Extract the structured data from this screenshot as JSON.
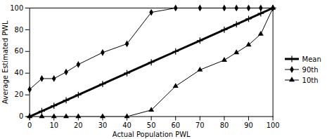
{
  "chart_data": {
    "type": "line",
    "x": [
      0,
      5,
      10,
      15,
      20,
      30,
      40,
      50,
      60,
      70,
      80,
      85,
      90,
      95,
      100
    ],
    "series": [
      {
        "name": "Mean",
        "color": "#000000",
        "marker": "plus",
        "values": [
          0,
          5,
          10,
          15,
          20,
          30,
          40,
          50,
          60,
          70,
          80,
          85,
          90,
          95,
          100
        ]
      },
      {
        "name": "90th",
        "color": "#000000",
        "marker": "diamond",
        "values": [
          25,
          35,
          35,
          41,
          48,
          59,
          67,
          96,
          100,
          100,
          100,
          100,
          100,
          100,
          100
        ]
      },
      {
        "name": "10th",
        "color": "#000000",
        "marker": "triangle",
        "values": [
          0,
          0,
          0,
          0,
          0,
          0,
          0,
          6,
          28,
          43,
          52,
          59,
          66,
          76,
          100
        ]
      }
    ],
    "xlabel": "Actual Population PWL",
    "ylabel": "Average Estimated PWL",
    "xlim": [
      0,
      100
    ],
    "ylim": [
      0,
      100
    ],
    "xticks": [
      0,
      10,
      20,
      30,
      40,
      50,
      60,
      70,
      80,
      90,
      100
    ],
    "yticks": [
      0,
      20,
      40,
      60,
      80,
      100
    ],
    "grid": false,
    "legend": "right"
  }
}
